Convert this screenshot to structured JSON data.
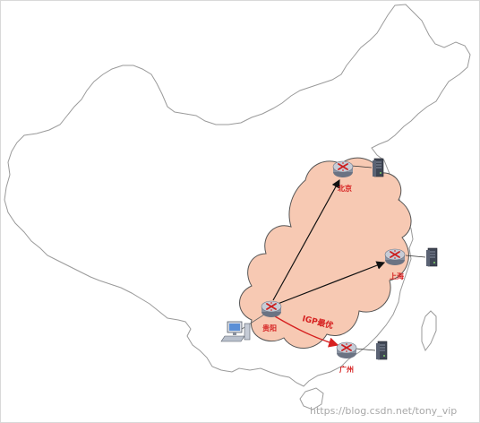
{
  "colors": {
    "map_outline": "#9a9a9a",
    "cloud_fill": "#f7c9b3",
    "cloud_stroke": "#555555",
    "router_body": "#8a93a2",
    "router_top": "#c7ccd6",
    "router_mark": "#cc1f1f",
    "server_body": "#3f4654",
    "pc_screen": "#5a8fd6",
    "arrow_black": "#111111",
    "arrow_red": "#d62020",
    "city_text": "#d62020",
    "watermark_text": "#a8a8a8"
  },
  "nodes": {
    "beijing": {
      "label": "北京",
      "icon": "router-icon"
    },
    "shanghai": {
      "label": "上海",
      "icon": "router-icon"
    },
    "guiyang": {
      "label": "贵阳",
      "icon": "router-icon"
    },
    "guangzhou": {
      "label": "广州",
      "icon": "router-icon"
    }
  },
  "links": [
    {
      "from": "guiyang",
      "to": "beijing",
      "color": "black"
    },
    {
      "from": "guiyang",
      "to": "shanghai",
      "color": "black"
    },
    {
      "from": "guiyang",
      "to": "guangzhou",
      "color": "red",
      "label": "IGP最优"
    }
  ],
  "watermark": "https://blog.csdn.net/tony_vip"
}
